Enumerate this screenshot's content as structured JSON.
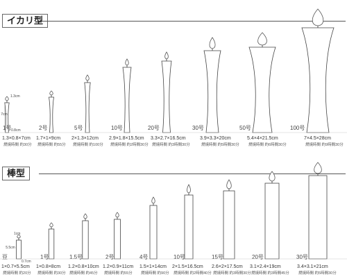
{
  "sections": [
    {
      "title": "イカリ型",
      "sub_labels": [
        "1.3cm",
        "7cm",
        "0.8cm"
      ],
      "items": [
        {
          "num": "1号",
          "dim": "1.3×0.8×7cm",
          "burn": "燃焼時間 約30分"
        },
        {
          "num": "2号",
          "dim": "1.7×1×9cm",
          "burn": "燃焼時間 約55分"
        },
        {
          "num": "5号",
          "dim": "2×1.3×12cm",
          "burn": "燃焼時間 約100分"
        },
        {
          "num": "10号",
          "dim": "2.9×1.8×15.5cm",
          "burn": "燃焼時間 約2時間30分"
        },
        {
          "num": "20号",
          "dim": "3.3×2.7×16.5cm",
          "burn": "燃焼時間 約3時間30分"
        },
        {
          "num": "30号",
          "dim": "3.9×3.3×20cm",
          "burn": "燃焼時間 約5時間30分"
        },
        {
          "num": "50号",
          "dim": "5.4×4×21.5cm",
          "burn": "燃焼時間 約6時間30分"
        },
        {
          "num": "100号",
          "dim": "7×4.5×28cm",
          "burn": "燃焼時間 約9時間30分"
        }
      ]
    },
    {
      "title": "棒型",
      "sub_labels": [
        "1cm",
        "5.5cm",
        "0.7cm"
      ],
      "items": [
        {
          "num": "豆",
          "dim": "1×0.7×5.5cm",
          "burn": "燃焼時間 約20分"
        },
        {
          "num": "1号",
          "dim": "1×0.8×8cm",
          "burn": "燃焼時間 約30分"
        },
        {
          "num": "1.5号",
          "dim": "1.2×0.8×10cm",
          "burn": "燃焼時間 約45分"
        },
        {
          "num": "2号",
          "dim": "1.2×0.9×11cm",
          "burn": "燃焼時間 約55分"
        },
        {
          "num": "4号",
          "dim": "1.5×1×14cm",
          "burn": "燃焼時間 約90分"
        },
        {
          "num": "10号",
          "dim": "2×1.5×16.5cm",
          "burn": "燃焼時間 約2時間40分"
        },
        {
          "num": "15号",
          "dim": "2.6×2×17.5cm",
          "burn": "燃焼時間 約3時間30分"
        },
        {
          "num": "20号",
          "dim": "3.1×2.4×19cm",
          "burn": "燃焼時間 約3時間45分"
        },
        {
          "num": "30号",
          "dim": "3.4×3.1×21cm",
          "burn": "燃焼時間 約5時間30分"
        }
      ]
    }
  ]
}
